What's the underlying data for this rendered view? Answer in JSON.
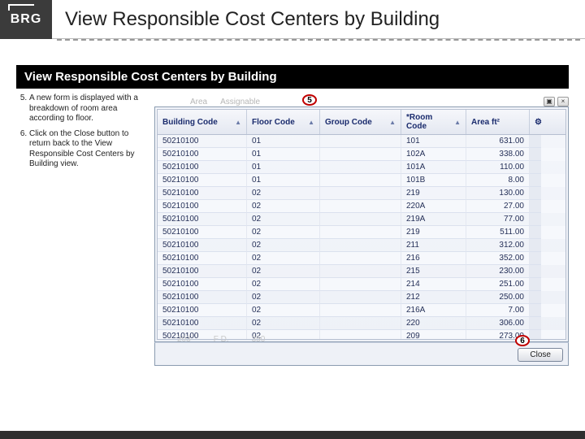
{
  "header": {
    "logo_text": "BRG",
    "page_title": "View Responsible Cost Centers by Building"
  },
  "section_title": "View Responsible Cost Centers by Building",
  "instructions": {
    "start": 5,
    "items": [
      "A new form is displayed with a breakdown of room area according to floor.",
      "Click on the Close button to return back to the View Responsible Cost Centers by Building view."
    ]
  },
  "callouts": {
    "five": "5",
    "six": "6"
  },
  "tabs": {
    "t1": "Area",
    "t2": "Assignable"
  },
  "grid": {
    "columns": [
      "Building Code",
      "Floor Code",
      "Group Code",
      "*Room Code",
      "Area ft²"
    ],
    "sort_glyph": "▲",
    "gear_glyph": "⚙",
    "rows": [
      [
        "50210100",
        "01",
        "",
        "101",
        "631.00"
      ],
      [
        "50210100",
        "01",
        "",
        "102A",
        "338.00"
      ],
      [
        "50210100",
        "01",
        "",
        "101A",
        "110.00"
      ],
      [
        "50210100",
        "01",
        "",
        "101B",
        "8.00"
      ],
      [
        "50210100",
        "02",
        "",
        "219",
        "130.00"
      ],
      [
        "50210100",
        "02",
        "",
        "220A",
        "27.00"
      ],
      [
        "50210100",
        "02",
        "",
        "219A",
        "77.00"
      ],
      [
        "50210100",
        "02",
        "",
        "219",
        "511.00"
      ],
      [
        "50210100",
        "02",
        "",
        "211",
        "312.00"
      ],
      [
        "50210100",
        "02",
        "",
        "216",
        "352.00"
      ],
      [
        "50210100",
        "02",
        "",
        "215",
        "230.00"
      ],
      [
        "50210100",
        "02",
        "",
        "214",
        "251.00"
      ],
      [
        "50210100",
        "02",
        "",
        "212",
        "250.00"
      ],
      [
        "50210100",
        "02",
        "",
        "216A",
        "7.00"
      ],
      [
        "50210100",
        "02",
        "",
        "220",
        "306.00"
      ],
      [
        "50210100",
        "02",
        "",
        "209",
        "273.00"
      ]
    ]
  },
  "faded": {
    "a": "203",
    "b": "F D.",
    "c": "350"
  },
  "close_label": "Close",
  "window_controls": {
    "dock": "▣",
    "close": "×"
  }
}
